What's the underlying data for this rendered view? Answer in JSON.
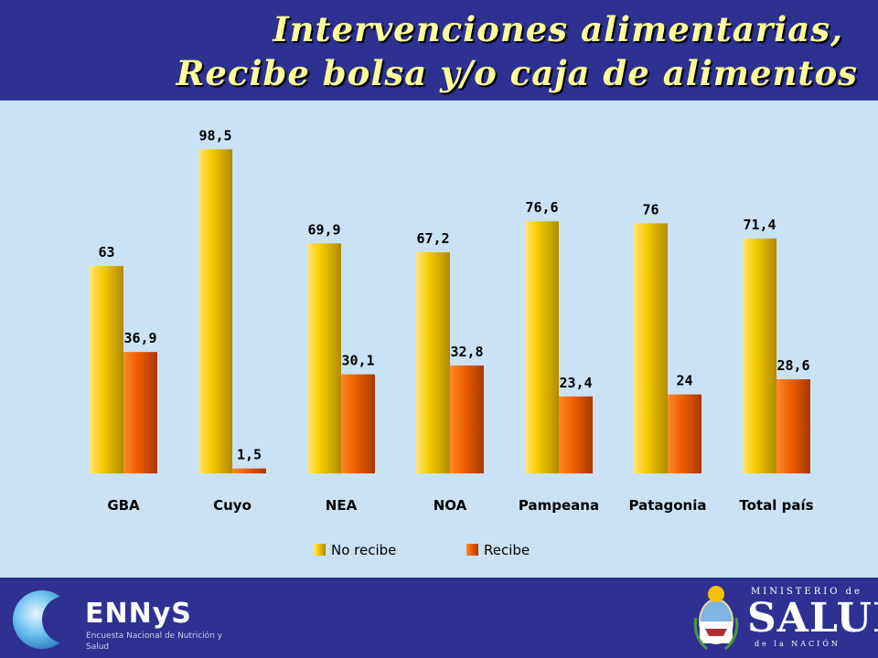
{
  "header": {
    "title_line1": "Intervenciones alimentarias,",
    "title_line2": "Recibe bolsa y/o caja de alimentos"
  },
  "chart_data": {
    "type": "bar",
    "categories": [
      "GBA",
      "Cuyo",
      "NEA",
      "NOA",
      "Pampeana",
      "Patagonia",
      "Total país"
    ],
    "series": [
      {
        "name": "No recibe",
        "values": [
          63,
          98.5,
          69.9,
          67.2,
          76.6,
          76,
          71.4
        ],
        "labels": [
          "63",
          "98,5",
          "69,9",
          "67,2",
          "76,6",
          "76",
          "71,4"
        ],
        "color": "#f2c200"
      },
      {
        "name": "Recibe",
        "values": [
          36.9,
          1.5,
          30.1,
          32.8,
          23.4,
          24,
          28.6
        ],
        "labels": [
          "36,9",
          "1,5",
          "30,1",
          "32,8",
          "23,4",
          "24",
          "28,6"
        ],
        "color": "#ee5a00"
      }
    ],
    "ylim": [
      0,
      100
    ],
    "grid": false,
    "legend": "bottom"
  },
  "footer": {
    "ennys_name": "ENNyS",
    "ennys_subtitle": "Encuesta Nacional de Nutrición y Salud",
    "ministry_line1": "MINISTERIO de",
    "ministry_line2": "SALUD",
    "ministry_line3": "de la NACIÓN",
    "colors": {
      "accent": "#2e3192",
      "panel": "#c9e2f6",
      "title": "#ffff99"
    }
  }
}
